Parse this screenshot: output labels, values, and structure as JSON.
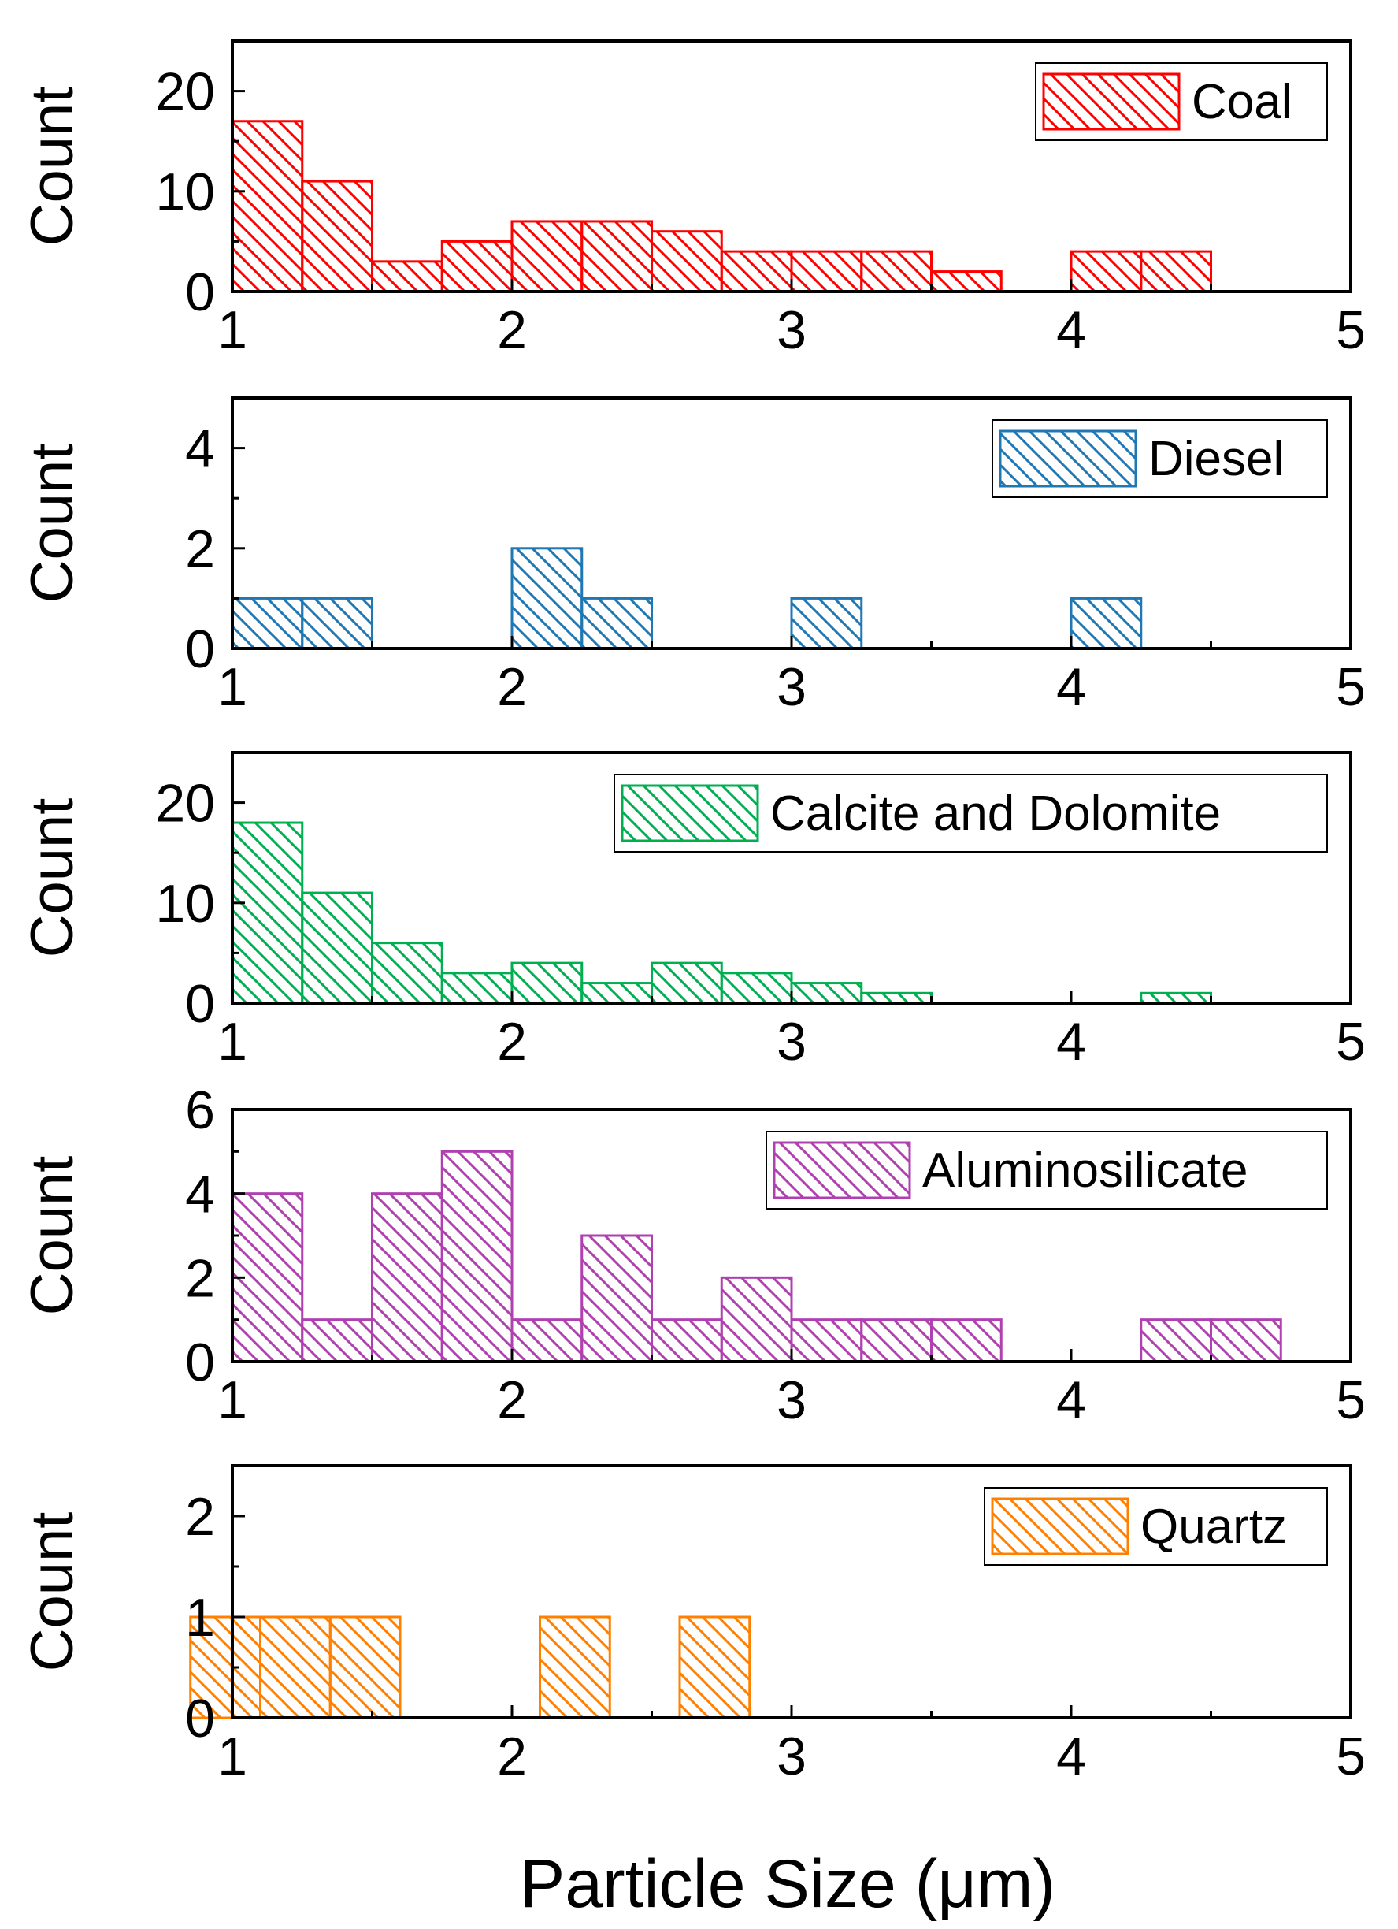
{
  "figure": {
    "xlabel": "Particle Size (μm)"
  },
  "chart_data": [
    {
      "type": "bar",
      "title": "",
      "legend": "Coal",
      "color": "#ff0000",
      "xlabel": "",
      "ylabel": "Count",
      "xlim": [
        1,
        5
      ],
      "ylim": [
        0,
        25
      ],
      "xticks": [
        "1",
        "2",
        "3",
        "4",
        "5"
      ],
      "yticks": [
        "0",
        "10",
        "20"
      ],
      "bin_width": 0.25,
      "bins": [
        {
          "x0": 1.0,
          "count": 17
        },
        {
          "x0": 1.25,
          "count": 11
        },
        {
          "x0": 1.5,
          "count": 3
        },
        {
          "x0": 1.75,
          "count": 5
        },
        {
          "x0": 2.0,
          "count": 7
        },
        {
          "x0": 2.25,
          "count": 7
        },
        {
          "x0": 2.5,
          "count": 6
        },
        {
          "x0": 2.75,
          "count": 4
        },
        {
          "x0": 3.0,
          "count": 4
        },
        {
          "x0": 3.25,
          "count": 4
        },
        {
          "x0": 3.5,
          "count": 2
        },
        {
          "x0": 4.0,
          "count": 4
        },
        {
          "x0": 4.25,
          "count": 4
        }
      ]
    },
    {
      "type": "bar",
      "title": "",
      "legend": "Diesel",
      "color": "#1f77b4",
      "xlabel": "",
      "ylabel": "Count",
      "xlim": [
        1,
        5
      ],
      "ylim": [
        0,
        5
      ],
      "xticks": [
        "1",
        "2",
        "3",
        "4",
        "5"
      ],
      "yticks": [
        "0",
        "2",
        "4"
      ],
      "bin_width": 0.25,
      "bins": [
        {
          "x0": 1.0,
          "count": 1
        },
        {
          "x0": 1.25,
          "count": 1
        },
        {
          "x0": 2.0,
          "count": 2
        },
        {
          "x0": 2.25,
          "count": 1
        },
        {
          "x0": 3.0,
          "count": 1
        },
        {
          "x0": 4.0,
          "count": 1
        }
      ]
    },
    {
      "type": "bar",
      "title": "",
      "legend": "Calcite and Dolomite",
      "color": "#00b050",
      "xlabel": "",
      "ylabel": "Count",
      "xlim": [
        1,
        5
      ],
      "ylim": [
        0,
        25
      ],
      "xticks": [
        "1",
        "2",
        "3",
        "4",
        "5"
      ],
      "yticks": [
        "0",
        "10",
        "20"
      ],
      "bin_width": 0.25,
      "bins": [
        {
          "x0": 1.0,
          "count": 18
        },
        {
          "x0": 1.25,
          "count": 11
        },
        {
          "x0": 1.5,
          "count": 6
        },
        {
          "x0": 1.75,
          "count": 3
        },
        {
          "x0": 2.0,
          "count": 4
        },
        {
          "x0": 2.25,
          "count": 2
        },
        {
          "x0": 2.5,
          "count": 4
        },
        {
          "x0": 2.75,
          "count": 3
        },
        {
          "x0": 3.0,
          "count": 2
        },
        {
          "x0": 3.25,
          "count": 1
        },
        {
          "x0": 4.25,
          "count": 1
        }
      ]
    },
    {
      "type": "bar",
      "title": "",
      "legend": "Aluminosilicate",
      "color": "#b040b0",
      "xlabel": "",
      "ylabel": "Count",
      "xlim": [
        1,
        5
      ],
      "ylim": [
        0,
        6
      ],
      "xticks": [
        "1",
        "2",
        "3",
        "4",
        "5"
      ],
      "yticks": [
        "0",
        "2",
        "4",
        "6"
      ],
      "bin_width": 0.25,
      "bins": [
        {
          "x0": 1.0,
          "count": 4
        },
        {
          "x0": 1.25,
          "count": 1
        },
        {
          "x0": 1.5,
          "count": 4
        },
        {
          "x0": 1.75,
          "count": 5
        },
        {
          "x0": 2.0,
          "count": 1
        },
        {
          "x0": 2.25,
          "count": 3
        },
        {
          "x0": 2.5,
          "count": 1
        },
        {
          "x0": 2.75,
          "count": 2
        },
        {
          "x0": 3.0,
          "count": 1
        },
        {
          "x0": 3.25,
          "count": 1
        },
        {
          "x0": 3.5,
          "count": 1
        },
        {
          "x0": 4.25,
          "count": 1
        },
        {
          "x0": 4.5,
          "count": 1
        }
      ]
    },
    {
      "type": "bar",
      "title": "",
      "legend": "Quartz",
      "color": "#ff8000",
      "xlabel": "Particle Size (μm)",
      "ylabel": "Count",
      "xlim": [
        1,
        5
      ],
      "ylim": [
        0,
        2.5
      ],
      "xticks": [
        "1",
        "2",
        "3",
        "4",
        "5"
      ],
      "yticks": [
        "0",
        "1",
        "2"
      ],
      "bin_width": 0.25,
      "bins": [
        {
          "x0": 0.85,
          "count": 1
        },
        {
          "x0": 1.1,
          "count": 1
        },
        {
          "x0": 1.35,
          "count": 1
        },
        {
          "x0": 2.1,
          "count": 1
        },
        {
          "x0": 2.6,
          "count": 1
        }
      ]
    }
  ]
}
